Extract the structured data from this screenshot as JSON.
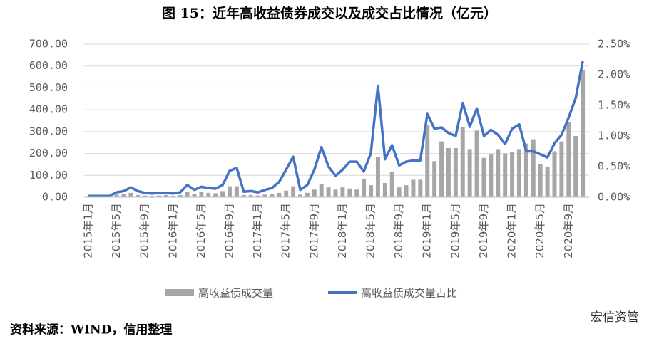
{
  "chart_data": {
    "type": "bar_line",
    "title": "图 15：近年高收益债券成交以及成交占比情况（亿元）",
    "categories": [
      "2015年1月",
      null,
      null,
      null,
      "2015年5月",
      null,
      null,
      null,
      "2015年9月",
      null,
      null,
      null,
      "2016年1月",
      null,
      null,
      null,
      "2016年5月",
      null,
      null,
      null,
      "2016年9月",
      null,
      null,
      null,
      "2017年1月",
      null,
      null,
      null,
      "2017年5月",
      null,
      null,
      null,
      "2017年9月",
      null,
      null,
      null,
      "2018年1月",
      null,
      null,
      null,
      "2018年5月",
      null,
      null,
      null,
      "2018年9月",
      null,
      null,
      null,
      "2019年1月",
      null,
      null,
      null,
      "2019年5月",
      null,
      null,
      null,
      "2019年9月",
      null,
      null,
      null,
      "2020年1月",
      null,
      null,
      null,
      "2020年5月",
      null,
      null,
      null,
      "2020年9月",
      null,
      null
    ],
    "series": [
      {
        "name": "高收益债成交量",
        "color": "#a6a6a6",
        "type": "bar",
        "values": [
          2,
          3,
          5,
          8,
          12,
          15,
          20,
          10,
          8,
          5,
          8,
          10,
          5,
          10,
          25,
          15,
          25,
          20,
          18,
          28,
          50,
          50,
          10,
          10,
          8,
          12,
          15,
          20,
          30,
          50,
          12,
          20,
          35,
          60,
          45,
          35,
          45,
          40,
          35,
          85,
          55,
          185,
          65,
          115,
          45,
          55,
          80,
          80,
          330,
          165,
          255,
          225,
          225,
          320,
          220,
          305,
          180,
          195,
          220,
          200,
          205,
          220,
          245,
          265,
          150,
          140,
          210,
          255,
          345,
          280,
          580
        ]
      },
      {
        "name": "高收益债成交量占比",
        "color": "#4472c4",
        "type": "line",
        "axis": "y2",
        "values": [
          0.02,
          0.02,
          0.02,
          0.02,
          0.08,
          0.1,
          0.16,
          0.1,
          0.07,
          0.06,
          0.07,
          0.07,
          0.06,
          0.08,
          0.2,
          0.12,
          0.17,
          0.15,
          0.14,
          0.2,
          0.43,
          0.48,
          0.09,
          0.1,
          0.08,
          0.12,
          0.15,
          0.25,
          0.45,
          0.66,
          0.12,
          0.2,
          0.45,
          0.82,
          0.5,
          0.35,
          0.45,
          0.58,
          0.58,
          0.42,
          0.72,
          1.82,
          0.62,
          0.85,
          0.52,
          0.58,
          0.6,
          0.6,
          1.36,
          1.12,
          1.14,
          1.05,
          1.0,
          1.54,
          1.15,
          1.45,
          1.0,
          1.1,
          1.02,
          0.87,
          1.12,
          1.19,
          0.75,
          0.75,
          0.7,
          0.65,
          0.88,
          1.02,
          1.3,
          1.62,
          2.22
        ]
      }
    ],
    "ylim": [
      0,
      700
    ],
    "yticks": [
      {
        "value": 0,
        "label": "0.00"
      },
      {
        "value": 100,
        "label": "100.00"
      },
      {
        "value": 200,
        "label": "200.00"
      },
      {
        "value": 300,
        "label": "300.00"
      },
      {
        "value": 400,
        "label": "400.00"
      },
      {
        "value": 500,
        "label": "500.00"
      },
      {
        "value": 600,
        "label": "600.00"
      },
      {
        "value": 700,
        "label": "700.00"
      }
    ],
    "y2lim": [
      0,
      2.5
    ],
    "y2ticks": [
      {
        "value": 0,
        "label": "0.00%"
      },
      {
        "value": 0.5,
        "label": "0.50%"
      },
      {
        "value": 1,
        "label": "1.00%"
      },
      {
        "value": 1.5,
        "label": "1.50%"
      },
      {
        "value": 2,
        "label": "2.00%"
      },
      {
        "value": 2.5,
        "label": "2.50%"
      }
    ],
    "grid": true,
    "source": "资料来源：WIND，信用整理",
    "watermark": "宏信资管"
  }
}
